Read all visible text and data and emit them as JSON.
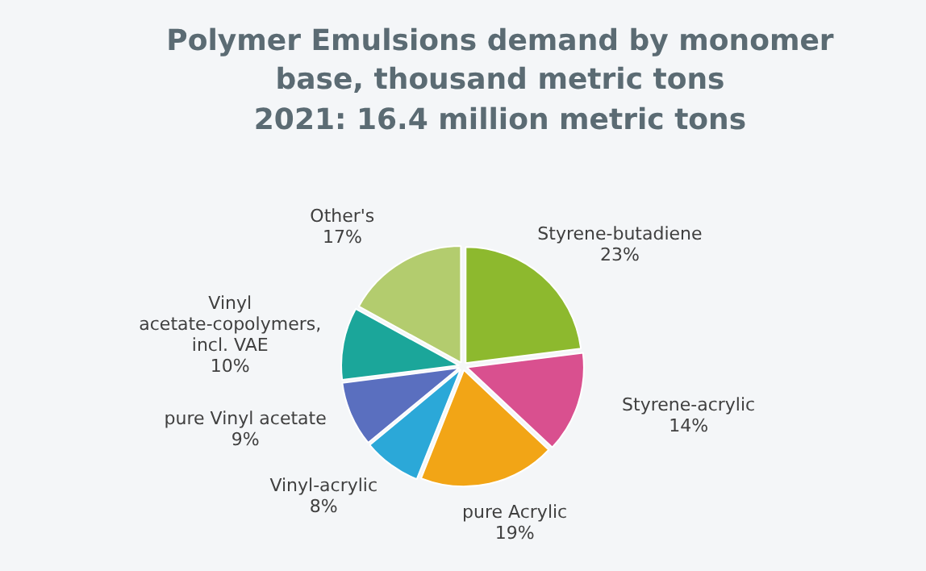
{
  "chart_data": {
    "type": "pie",
    "title": "Polymer Emulsions demand by monomer base, thousand metric tons",
    "subtitle": "2021: 16.4  million metric tons",
    "categories": [
      "Styrene-butadiene",
      "Styrene-acrylic",
      "pure Acrylic",
      "Vinyl-acrylic",
      "pure Vinyl acetate",
      "Vinyl acetate-copolymers, incl. VAE",
      "Other's"
    ],
    "values": [
      23,
      14,
      19,
      8,
      9,
      10,
      17
    ],
    "value_labels": [
      "23%",
      "14%",
      "19%",
      "8%",
      "9%",
      "10%",
      "17%"
    ],
    "colors": [
      "#8db92e",
      "#d9508f",
      "#f2a516",
      "#2ba8d8",
      "#5a6fbf",
      "#1ba69a",
      "#b3cc6e"
    ],
    "legend": false
  }
}
